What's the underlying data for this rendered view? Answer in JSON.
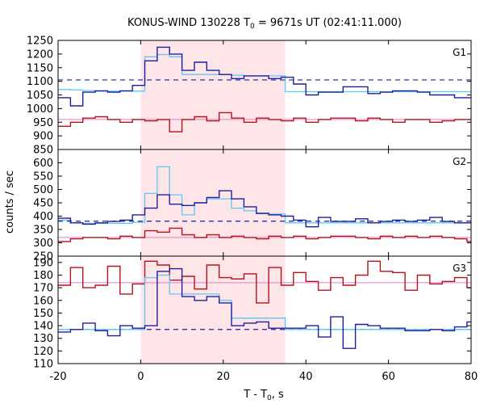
{
  "chart_data": {
    "type": "line",
    "title_main": "KONUS-WIND 130228 T",
    "title_sub": "0",
    "title_rest": " = 9671s UT (02:41:11.000)",
    "xlabel_main": "T - T",
    "xlabel_sub": "0",
    "xlabel_rest": ", s",
    "ylabel": "counts / sec",
    "xlim": [
      -20,
      80
    ],
    "x_ticks": [
      "-20",
      "0",
      "20",
      "40",
      "60",
      "80"
    ],
    "x_tick_values": [
      -20,
      0,
      20,
      40,
      60,
      80
    ],
    "shaded_interval": [
      0,
      35
    ],
    "colors": {
      "observed": "#1f1f9e",
      "model": "#5ec8f0",
      "background_counts": "#b5121b",
      "background_level": "#e07fd0",
      "shade": "#fde5e8"
    },
    "panels": [
      {
        "name": "G1",
        "ylim": [
          850,
          1250
        ],
        "y_ticks": [
          850,
          900,
          950,
          1000,
          1050,
          1100,
          1150,
          1200,
          1250
        ],
        "dashed_level": 1105,
        "background_level": 960,
        "step_edges": [
          -20,
          -17,
          -14,
          -11,
          -8,
          -5,
          -2,
          1,
          4,
          7,
          10,
          13,
          16,
          19,
          22,
          25,
          28,
          31,
          34,
          37,
          40,
          43,
          46,
          49,
          52,
          55,
          58,
          61,
          64,
          67,
          70,
          73,
          76,
          79,
          80
        ],
        "series": [
          {
            "name": "observed",
            "values": [
              1040,
              1010,
              1060,
              1065,
              1060,
              1065,
              1085,
              1175,
              1225,
              1200,
              1140,
              1170,
              1140,
              1125,
              1110,
              1120,
              1120,
              1110,
              1115,
              1090,
              1050,
              1060,
              1060,
              1080,
              1080,
              1055,
              1060,
              1065,
              1065,
              1060,
              1050,
              1050,
              1040,
              1040
            ]
          },
          {
            "name": "model",
            "step_edges": [
              -20,
              -17,
              -14,
              -11,
              -8,
              -5,
              -2,
              1,
              4,
              7,
              10,
              13,
              16,
              19,
              22,
              25,
              28,
              31,
              34,
              35,
              38,
              41,
              44,
              47,
              50,
              53,
              56,
              59,
              62,
              65,
              68,
              71,
              74,
              77,
              80
            ],
            "values": [
              1070,
              1068,
              1066,
              1064,
              1064,
              1064,
              1064,
              1190,
              1198,
              1190,
              1125,
              1125,
              1125,
              1125,
              1122,
              1120,
              1120,
              1120,
              1120,
              1062,
              1062,
              1062,
              1062,
              1062,
              1062,
              1062,
              1062,
              1062,
              1062,
              1062,
              1062,
              1062,
              1062,
              1062
            ]
          },
          {
            "name": "background_counts",
            "values": [
              935,
              950,
              965,
              970,
              960,
              950,
              960,
              955,
              960,
              915,
              960,
              970,
              955,
              985,
              965,
              950,
              965,
              960,
              955,
              965,
              950,
              960,
              965,
              965,
              955,
              965,
              960,
              950,
              960,
              960,
              950,
              955,
              960,
              960
            ]
          }
        ]
      },
      {
        "name": "G2",
        "ylim": [
          250,
          650
        ],
        "y_ticks": [
          250,
          300,
          350,
          400,
          450,
          500,
          550,
          600
        ],
        "dashed_level": 381,
        "background_level": 320,
        "step_edges": [
          -20,
          -17,
          -14,
          -11,
          -8,
          -5,
          -2,
          1,
          4,
          7,
          10,
          13,
          16,
          19,
          22,
          25,
          28,
          31,
          34,
          37,
          40,
          43,
          46,
          49,
          52,
          55,
          58,
          61,
          64,
          67,
          70,
          73,
          76,
          79,
          80
        ],
        "series": [
          {
            "name": "observed",
            "values": [
              392,
              375,
              370,
              375,
              380,
              385,
              405,
              430,
              480,
              445,
              440,
              450,
              470,
              495,
              465,
              435,
              410,
              405,
              400,
              385,
              360,
              395,
              380,
              380,
              390,
              375,
              380,
              385,
              380,
              385,
              395,
              380,
              375,
              375
            ]
          },
          {
            "name": "model",
            "step_edges": [
              -20,
              -17,
              -14,
              -11,
              -8,
              -5,
              -2,
              1,
              4,
              7,
              10,
              13,
              16,
              19,
              22,
              25,
              28,
              31,
              34,
              35,
              38,
              41,
              44,
              47,
              50,
              53,
              56,
              59,
              62,
              65,
              68,
              71,
              74,
              77,
              80
            ],
            "values": [
              385,
              375,
              373,
              373,
              373,
              373,
              377,
              485,
              585,
              480,
              405,
              450,
              465,
              465,
              430,
              420,
              412,
              408,
              408,
              375,
              375,
              375,
              375,
              375,
              375,
              375,
              375,
              375,
              375,
              375,
              375,
              375,
              375,
              375
            ]
          },
          {
            "name": "background_counts",
            "values": [
              305,
              315,
              320,
              320,
              315,
              325,
              320,
              345,
              340,
              355,
              330,
              320,
              330,
              320,
              325,
              320,
              315,
              325,
              320,
              325,
              315,
              320,
              325,
              325,
              320,
              315,
              325,
              320,
              325,
              320,
              325,
              320,
              315,
              305
            ]
          }
        ]
      },
      {
        "name": "G3",
        "ylim": [
          110,
          195
        ],
        "y_ticks": [
          110,
          120,
          130,
          140,
          150,
          160,
          170,
          180,
          190
        ],
        "dashed_level": 137,
        "background_level": 174,
        "step_edges": [
          -20,
          -17,
          -14,
          -11,
          -8,
          -5,
          -2,
          1,
          4,
          7,
          10,
          13,
          16,
          19,
          22,
          25,
          28,
          31,
          34,
          37,
          40,
          43,
          46,
          49,
          52,
          55,
          58,
          61,
          64,
          67,
          70,
          73,
          76,
          79,
          80
        ],
        "series": [
          {
            "name": "observed",
            "values": [
              135,
              137,
              142,
              136,
              132,
              140,
              138,
              140,
              183,
              185,
              163,
              160,
              163,
              158,
              140,
              142,
              143,
              138,
              138,
              138,
              140,
              131,
              147,
              122,
              141,
              140,
              138,
              138,
              136,
              136,
              137,
              136,
              139,
              143
            ]
          },
          {
            "name": "model",
            "step_edges": [
              -20,
              -17,
              -14,
              -11,
              -8,
              -5,
              -2,
              0,
              1,
              4,
              7,
              10,
              13,
              16,
              19,
              22,
              25,
              28,
              31,
              35,
              38,
              41,
              44,
              47,
              50,
              53,
              56,
              59,
              62,
              65,
              68,
              71,
              74,
              77,
              80
            ],
            "values": [
              137,
              137,
              137,
              137,
              137,
              137,
              137,
              137,
              178,
              180,
              165,
              165,
              165,
              165,
              160,
              146,
              146,
              146,
              146,
              137,
              137,
              137,
              137,
              137,
              137,
              137,
              137,
              137,
              137,
              137,
              137,
              137,
              137,
              137
            ]
          },
          {
            "name": "background_counts",
            "values": [
              172,
              186,
              170,
              172,
              187,
              165,
              173,
              191,
              188,
              176,
              179,
              169,
              188,
              178,
              177,
              181,
              158,
              186,
              172,
              182,
              175,
              168,
              178,
              172,
              180,
              191,
              183,
              182,
              168,
              180,
              173,
              175,
              178,
              170
            ]
          }
        ]
      }
    ]
  }
}
